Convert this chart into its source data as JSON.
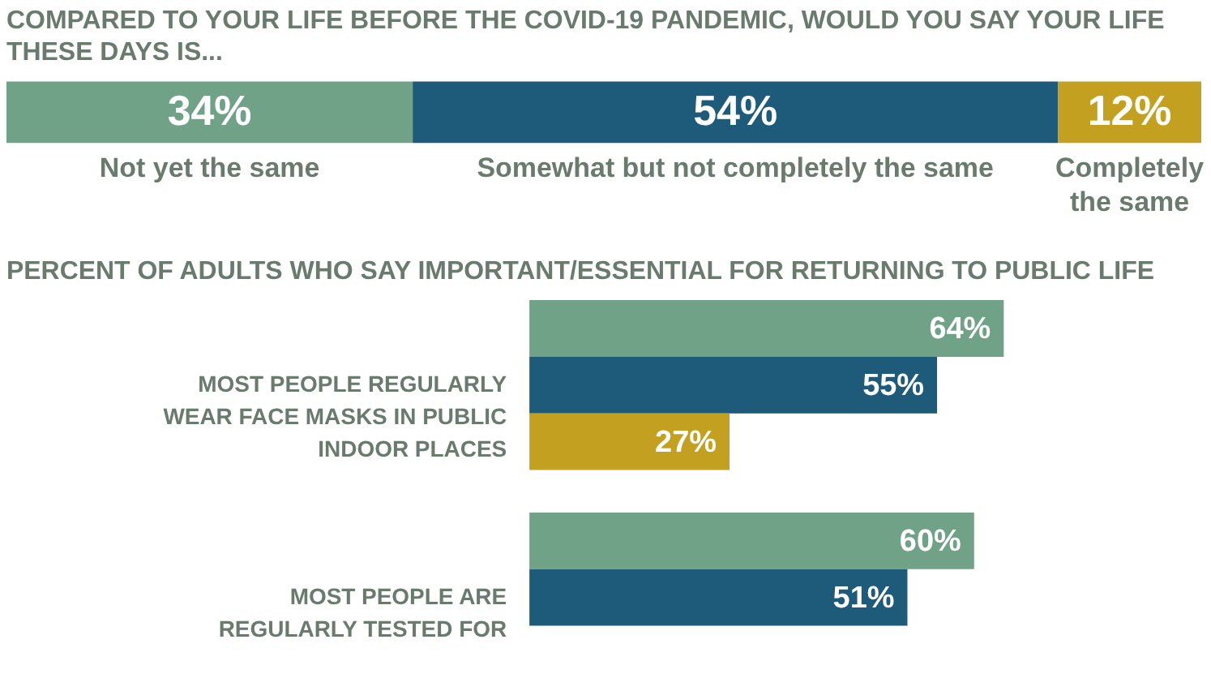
{
  "chart_data": [
    {
      "type": "bar",
      "orientation": "horizontal",
      "stacked": true,
      "title": "COMPARED TO YOUR LIFE BEFORE THE COVID-19 PANDEMIC, WOULD YOU SAY YOUR LIFE THESE DAYS IS...",
      "categories": [
        null
      ],
      "series": [
        {
          "name": "Not yet the same",
          "color": "#70a288",
          "values": [
            34
          ],
          "value_labels": [
            "34%"
          ]
        },
        {
          "name": "Somewhat but not completely the same",
          "color": "#1e5a7a",
          "values": [
            54
          ],
          "value_labels": [
            "54%"
          ]
        },
        {
          "name": "Completely the same",
          "color": "#c4a020",
          "values": [
            12
          ],
          "value_labels": [
            "12%"
          ]
        }
      ]
    },
    {
      "type": "bar",
      "orientation": "horizontal",
      "title": "PERCENT OF ADULTS WHO SAY IMPORTANT/ESSENTIAL FOR RETURNING TO PUBLIC LIFE",
      "categories": [
        "MOST PEOPLE REGULARLY WEAR FACE MASKS IN PUBLIC INDOOR PLACES",
        "MOST PEOPLE ARE REGULARLY TESTED FOR"
      ],
      "series": [
        {
          "color": "#70a288",
          "values": [
            64,
            60
          ],
          "value_labels": [
            "64%",
            "60%"
          ]
        },
        {
          "color": "#1e5a7a",
          "values": [
            55,
            51
          ],
          "value_labels": [
            "55%",
            "51%"
          ]
        },
        {
          "color": "#c4a020",
          "values": [
            27,
            null
          ],
          "value_labels": [
            "27%",
            null
          ]
        }
      ]
    }
  ]
}
